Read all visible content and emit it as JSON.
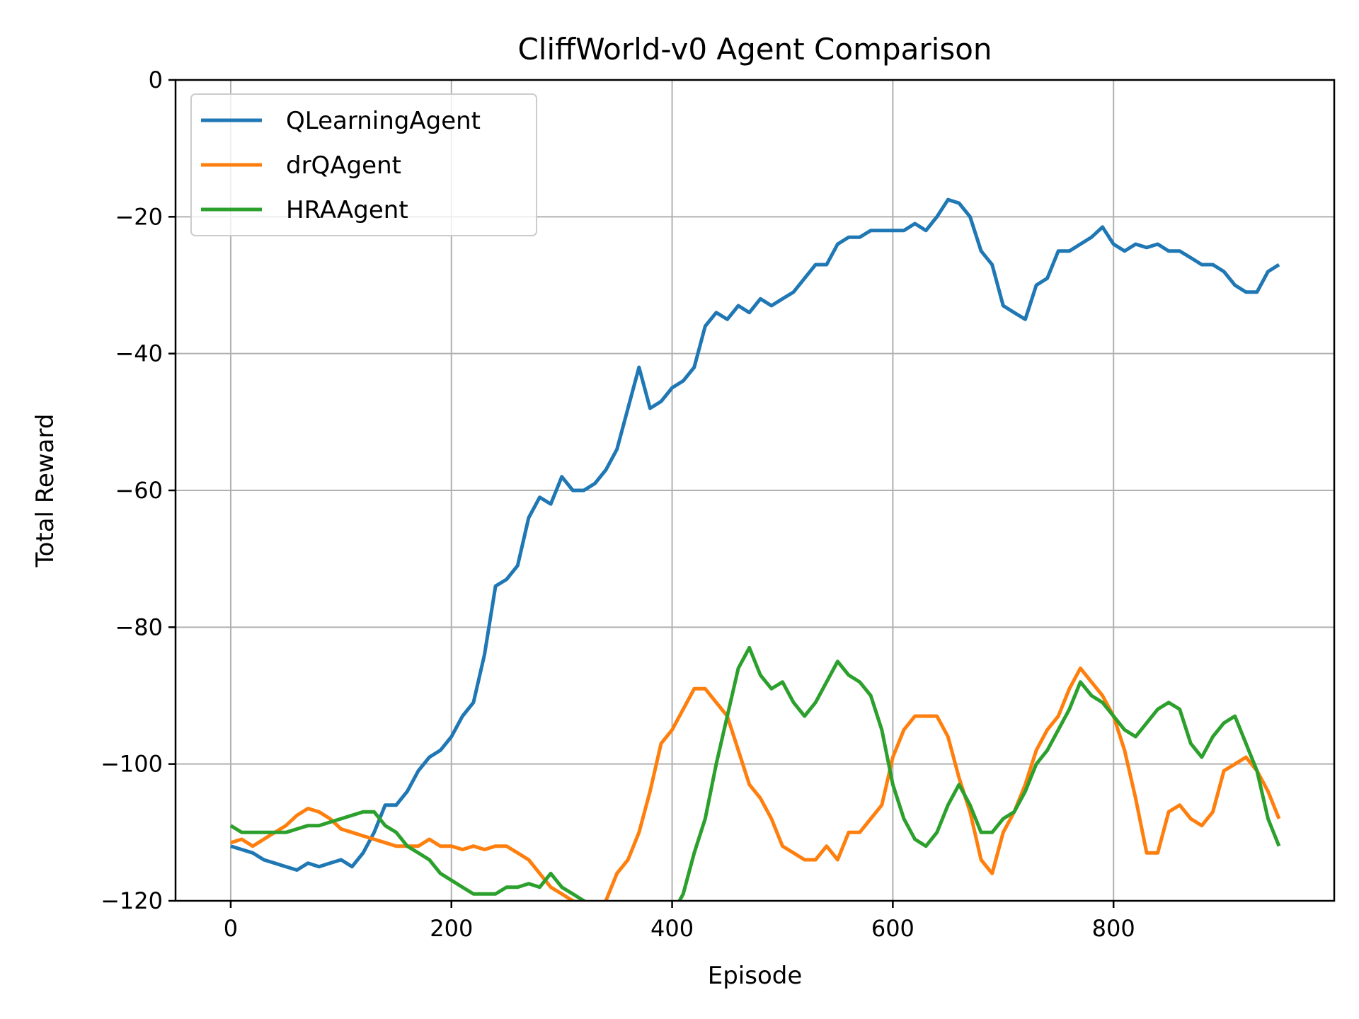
{
  "chart_data": {
    "type": "line",
    "title": "CliffWorld-v0 Agent Comparison",
    "xlabel": "Episode",
    "ylabel": "Total Reward",
    "xlim": [
      -50,
      1000
    ],
    "ylim": [
      -120,
      0
    ],
    "xticks": [
      0,
      200,
      400,
      600,
      800
    ],
    "yticks": [
      0,
      -20,
      -40,
      -60,
      -80,
      -100,
      -120
    ],
    "xtick_labels": [
      "0",
      "200",
      "400",
      "600",
      "800"
    ],
    "ytick_labels": [
      "0",
      "−20",
      "−40",
      "−60",
      "−80",
      "−100",
      "−120"
    ],
    "grid": true,
    "legend_position": "top-left",
    "series": [
      {
        "name": "QLearningAgent",
        "color": "#1f77b4",
        "points": [
          [
            0,
            -112
          ],
          [
            10,
            -112.5
          ],
          [
            20,
            -113
          ],
          [
            30,
            -114
          ],
          [
            40,
            -114.5
          ],
          [
            50,
            -115
          ],
          [
            60,
            -115.5
          ],
          [
            70,
            -114.5
          ],
          [
            80,
            -115
          ],
          [
            90,
            -114.5
          ],
          [
            100,
            -114
          ],
          [
            110,
            -115
          ],
          [
            120,
            -113
          ],
          [
            130,
            -110
          ],
          [
            140,
            -106
          ],
          [
            150,
            -106
          ],
          [
            160,
            -104
          ],
          [
            170,
            -101
          ],
          [
            180,
            -99
          ],
          [
            190,
            -98
          ],
          [
            200,
            -96
          ],
          [
            210,
            -93
          ],
          [
            220,
            -91
          ],
          [
            230,
            -84
          ],
          [
            240,
            -74
          ],
          [
            250,
            -73
          ],
          [
            260,
            -71
          ],
          [
            270,
            -64
          ],
          [
            280,
            -61
          ],
          [
            290,
            -62
          ],
          [
            300,
            -58
          ],
          [
            310,
            -60
          ],
          [
            320,
            -60
          ],
          [
            330,
            -59
          ],
          [
            340,
            -57
          ],
          [
            350,
            -54
          ],
          [
            360,
            -48
          ],
          [
            370,
            -42
          ],
          [
            380,
            -48
          ],
          [
            390,
            -47
          ],
          [
            400,
            -45
          ],
          [
            410,
            -44
          ],
          [
            420,
            -42
          ],
          [
            430,
            -36
          ],
          [
            440,
            -34
          ],
          [
            450,
            -35
          ],
          [
            460,
            -33
          ],
          [
            470,
            -34
          ],
          [
            480,
            -32
          ],
          [
            490,
            -33
          ],
          [
            500,
            -32
          ],
          [
            510,
            -31
          ],
          [
            520,
            -29
          ],
          [
            530,
            -27
          ],
          [
            540,
            -27
          ],
          [
            550,
            -24
          ],
          [
            560,
            -23
          ],
          [
            570,
            -23
          ],
          [
            580,
            -22
          ],
          [
            590,
            -22
          ],
          [
            600,
            -22
          ],
          [
            610,
            -22
          ],
          [
            620,
            -21
          ],
          [
            630,
            -22
          ],
          [
            640,
            -20
          ],
          [
            650,
            -17.5
          ],
          [
            660,
            -18
          ],
          [
            670,
            -20
          ],
          [
            680,
            -25
          ],
          [
            690,
            -27
          ],
          [
            700,
            -33
          ],
          [
            710,
            -34
          ],
          [
            720,
            -35
          ],
          [
            730,
            -30
          ],
          [
            740,
            -29
          ],
          [
            750,
            -25
          ],
          [
            760,
            -25
          ],
          [
            770,
            -24
          ],
          [
            780,
            -23
          ],
          [
            790,
            -21.5
          ],
          [
            800,
            -24
          ],
          [
            810,
            -25
          ],
          [
            820,
            -24
          ],
          [
            830,
            -24.5
          ],
          [
            840,
            -24
          ],
          [
            850,
            -25
          ],
          [
            860,
            -25
          ],
          [
            870,
            -26
          ],
          [
            880,
            -27
          ],
          [
            890,
            -27
          ],
          [
            900,
            -28
          ],
          [
            910,
            -30
          ],
          [
            920,
            -31
          ],
          [
            930,
            -31
          ],
          [
            940,
            -28
          ],
          [
            950,
            -27
          ]
        ]
      },
      {
        "name": "drQAgent",
        "color": "#ff7f0e",
        "points": [
          [
            0,
            -111.5
          ],
          [
            10,
            -111
          ],
          [
            20,
            -112
          ],
          [
            30,
            -111
          ],
          [
            40,
            -110
          ],
          [
            50,
            -109
          ],
          [
            60,
            -107.5
          ],
          [
            70,
            -106.5
          ],
          [
            80,
            -107
          ],
          [
            90,
            -108
          ],
          [
            100,
            -109.5
          ],
          [
            110,
            -110
          ],
          [
            120,
            -110.5
          ],
          [
            130,
            -111
          ],
          [
            140,
            -111.5
          ],
          [
            150,
            -112
          ],
          [
            160,
            -112
          ],
          [
            170,
            -112
          ],
          [
            180,
            -111
          ],
          [
            190,
            -112
          ],
          [
            200,
            -112
          ],
          [
            210,
            -112.5
          ],
          [
            220,
            -112
          ],
          [
            230,
            -112.5
          ],
          [
            240,
            -112
          ],
          [
            250,
            -112
          ],
          [
            260,
            -113
          ],
          [
            270,
            -114
          ],
          [
            280,
            -116
          ],
          [
            290,
            -118
          ],
          [
            300,
            -119
          ],
          [
            310,
            -120
          ],
          [
            320,
            -120.5
          ],
          [
            330,
            -121
          ],
          [
            340,
            -120
          ],
          [
            350,
            -116
          ],
          [
            360,
            -114
          ],
          [
            370,
            -110
          ],
          [
            380,
            -104
          ],
          [
            390,
            -97
          ],
          [
            400,
            -95
          ],
          [
            410,
            -92
          ],
          [
            420,
            -89
          ],
          [
            430,
            -89
          ],
          [
            440,
            -91
          ],
          [
            450,
            -93
          ],
          [
            460,
            -98
          ],
          [
            470,
            -103
          ],
          [
            480,
            -105
          ],
          [
            490,
            -108
          ],
          [
            500,
            -112
          ],
          [
            510,
            -113
          ],
          [
            520,
            -114
          ],
          [
            530,
            -114
          ],
          [
            540,
            -112
          ],
          [
            550,
            -114
          ],
          [
            560,
            -110
          ],
          [
            570,
            -110
          ],
          [
            580,
            -108
          ],
          [
            590,
            -106
          ],
          [
            600,
            -99
          ],
          [
            610,
            -95
          ],
          [
            620,
            -93
          ],
          [
            630,
            -93
          ],
          [
            640,
            -93
          ],
          [
            650,
            -96
          ],
          [
            660,
            -102
          ],
          [
            670,
            -107
          ],
          [
            680,
            -114
          ],
          [
            690,
            -116
          ],
          [
            700,
            -110
          ],
          [
            710,
            -107
          ],
          [
            720,
            -103
          ],
          [
            730,
            -98
          ],
          [
            740,
            -95
          ],
          [
            750,
            -93
          ],
          [
            760,
            -89
          ],
          [
            770,
            -86
          ],
          [
            780,
            -88
          ],
          [
            790,
            -90
          ],
          [
            800,
            -93
          ],
          [
            810,
            -98
          ],
          [
            820,
            -105
          ],
          [
            830,
            -113
          ],
          [
            840,
            -113
          ],
          [
            850,
            -107
          ],
          [
            860,
            -106
          ],
          [
            870,
            -108
          ],
          [
            880,
            -109
          ],
          [
            890,
            -107
          ],
          [
            900,
            -101
          ],
          [
            910,
            -100
          ],
          [
            920,
            -99
          ],
          [
            930,
            -101
          ],
          [
            940,
            -104
          ],
          [
            950,
            -108
          ]
        ]
      },
      {
        "name": "HRAAgent",
        "color": "#2ca02c",
        "points": [
          [
            0,
            -109
          ],
          [
            10,
            -110
          ],
          [
            20,
            -110
          ],
          [
            30,
            -110
          ],
          [
            40,
            -110
          ],
          [
            50,
            -110
          ],
          [
            60,
            -109.5
          ],
          [
            70,
            -109
          ],
          [
            80,
            -109
          ],
          [
            90,
            -108.5
          ],
          [
            100,
            -108
          ],
          [
            110,
            -107.5
          ],
          [
            120,
            -107
          ],
          [
            130,
            -107
          ],
          [
            140,
            -109
          ],
          [
            150,
            -110
          ],
          [
            160,
            -112
          ],
          [
            170,
            -113
          ],
          [
            180,
            -114
          ],
          [
            190,
            -116
          ],
          [
            200,
            -117
          ],
          [
            210,
            -118
          ],
          [
            220,
            -119
          ],
          [
            230,
            -119
          ],
          [
            240,
            -119
          ],
          [
            250,
            -118
          ],
          [
            260,
            -118
          ],
          [
            270,
            -117.5
          ],
          [
            280,
            -118
          ],
          [
            290,
            -116
          ],
          [
            300,
            -118
          ],
          [
            310,
            -119
          ],
          [
            320,
            -120
          ],
          [
            330,
            -121
          ],
          [
            340,
            -122
          ],
          [
            350,
            -123
          ],
          [
            360,
            -124
          ],
          [
            370,
            -125
          ],
          [
            380,
            -125
          ],
          [
            390,
            -124
          ],
          [
            400,
            -122
          ],
          [
            410,
            -119
          ],
          [
            420,
            -113
          ],
          [
            430,
            -108
          ],
          [
            440,
            -100
          ],
          [
            450,
            -93
          ],
          [
            460,
            -86
          ],
          [
            470,
            -83
          ],
          [
            480,
            -87
          ],
          [
            490,
            -89
          ],
          [
            500,
            -88
          ],
          [
            510,
            -91
          ],
          [
            520,
            -93
          ],
          [
            530,
            -91
          ],
          [
            540,
            -88
          ],
          [
            550,
            -85
          ],
          [
            560,
            -87
          ],
          [
            570,
            -88
          ],
          [
            580,
            -90
          ],
          [
            590,
            -95
          ],
          [
            600,
            -103
          ],
          [
            610,
            -108
          ],
          [
            620,
            -111
          ],
          [
            630,
            -112
          ],
          [
            640,
            -110
          ],
          [
            650,
            -106
          ],
          [
            660,
            -103
          ],
          [
            670,
            -106
          ],
          [
            680,
            -110
          ],
          [
            690,
            -110
          ],
          [
            700,
            -108
          ],
          [
            710,
            -107
          ],
          [
            720,
            -104
          ],
          [
            730,
            -100
          ],
          [
            740,
            -98
          ],
          [
            750,
            -95
          ],
          [
            760,
            -92
          ],
          [
            770,
            -88
          ],
          [
            780,
            -90
          ],
          [
            790,
            -91
          ],
          [
            800,
            -93
          ],
          [
            810,
            -95
          ],
          [
            820,
            -96
          ],
          [
            830,
            -94
          ],
          [
            840,
            -92
          ],
          [
            850,
            -91
          ],
          [
            860,
            -92
          ],
          [
            870,
            -97
          ],
          [
            880,
            -99
          ],
          [
            890,
            -96
          ],
          [
            900,
            -94
          ],
          [
            910,
            -93
          ],
          [
            920,
            -97
          ],
          [
            930,
            -101
          ],
          [
            940,
            -108
          ],
          [
            950,
            -112
          ]
        ]
      }
    ]
  }
}
